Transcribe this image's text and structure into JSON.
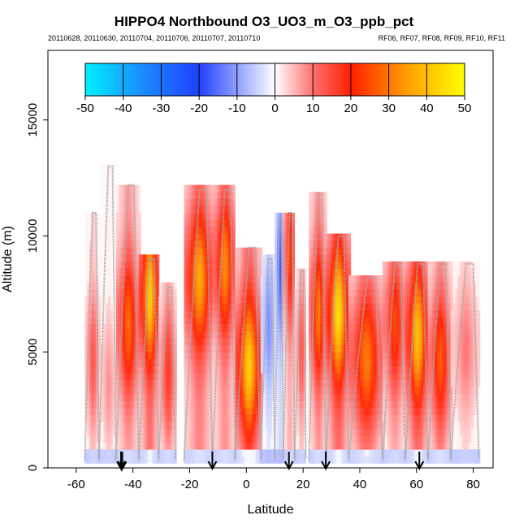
{
  "chart_data": {
    "type": "heatmap",
    "title": "HIPPO4 Northbound O3_UO3_m_O3_ppb_pct",
    "subtitle_left": "20110628, 20110630, 20110704, 20110706, 20110707, 20110710",
    "subtitle_right": "RF06, RF07, RF08, RF09, RF10, RF11",
    "xlabel": "Latitude",
    "ylabel": "Altitude (m)",
    "xlim": [
      -70,
      87
    ],
    "ylim": [
      0,
      18000
    ],
    "xticks": [
      "-60",
      "-40",
      "-20",
      "0",
      "20",
      "40",
      "60",
      "80"
    ],
    "yticks": [
      "0",
      "5000",
      "10000",
      "15000"
    ],
    "colorbar": {
      "ticks": [
        "-50",
        "-40",
        "-30",
        "-20",
        "-10",
        "0",
        "10",
        "20",
        "30",
        "40",
        "50"
      ],
      "range": [
        -50,
        50
      ],
      "colors": [
        "#00f0ff",
        "#1a8cff",
        "#2040ff",
        "#ffffff",
        "#ff7070",
        "#ff2000",
        "#ffa000",
        "#ffff00"
      ]
    },
    "arrows_latitude": [
      -44,
      -12,
      15,
      28,
      61
    ],
    "profiles": [
      {
        "x0": -57,
        "x1": -52,
        "top": 11000,
        "peak": 14,
        "peak_alt": 4500
      },
      {
        "x0": -52,
        "x1": -46,
        "top": 13000,
        "peak": 8,
        "peak_alt": 3500
      },
      {
        "x0": -46,
        "x1": -38,
        "top": 12200,
        "peak": 28,
        "peak_alt": 6000
      },
      {
        "x0": -38,
        "x1": -31,
        "top": 9000,
        "peak": 42,
        "peak_alt": 7200
      },
      {
        "x0": -31,
        "x1": -25,
        "top": 7800,
        "peak": 18,
        "peak_alt": 4000
      },
      {
        "x0": -22,
        "x1": -12,
        "top": 12000,
        "peak": 36,
        "peak_alt": 8000
      },
      {
        "x0": -12,
        "x1": -4,
        "top": 12000,
        "peak": 32,
        "peak_alt": 8500
      },
      {
        "x0": -4,
        "x1": 5,
        "top": 9500,
        "peak": 42,
        "peak_alt": 4200
      },
      {
        "x0": 5,
        "x1": 10,
        "top": 9000,
        "peak": -12,
        "peak_alt": 6000
      },
      {
        "x0": 10,
        "x1": 13,
        "top": 10800,
        "peak": -18,
        "peak_alt": 8500
      },
      {
        "x0": 13,
        "x1": 17,
        "top": 11000,
        "peak": 24,
        "peak_alt": 9000
      },
      {
        "x0": 17,
        "x1": 21,
        "top": 8500,
        "peak": 14,
        "peak_alt": 5000
      },
      {
        "x0": 22,
        "x1": 28,
        "top": 11800,
        "peak": 30,
        "peak_alt": 6500
      },
      {
        "x0": 28,
        "x1": 36,
        "top": 10000,
        "peak": 45,
        "peak_alt": 6500
      },
      {
        "x0": 36,
        "x1": 48,
        "top": 8200,
        "peak": 30,
        "peak_alt": 4500
      },
      {
        "x0": 48,
        "x1": 56,
        "top": 8800,
        "peak": 24,
        "peak_alt": 6000
      },
      {
        "x0": 56,
        "x1": 64,
        "top": 8800,
        "peak": 40,
        "peak_alt": 5500
      },
      {
        "x0": 64,
        "x1": 72,
        "top": 8800,
        "peak": 26,
        "peak_alt": 4500
      },
      {
        "x0": 72,
        "x1": 82,
        "top": 8800,
        "peak": 10,
        "peak_alt": 5000
      }
    ]
  }
}
